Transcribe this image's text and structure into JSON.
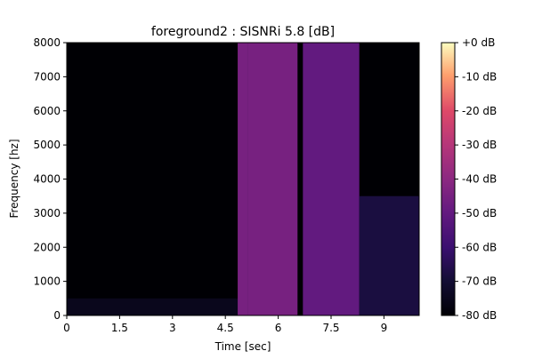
{
  "chart_data": {
    "type": "heatmap",
    "title": "foreground2 : SISNRi 5.8 [dB]",
    "xlabel": "Time [sec]",
    "ylabel": "Frequency [hz]",
    "xlim": [
      0,
      10
    ],
    "ylim": [
      0,
      8000
    ],
    "x_ticks": [
      0,
      1.5,
      3,
      4.5,
      6,
      7.5,
      9
    ],
    "x_tick_labels": [
      "0",
      "1.5",
      "3",
      "4.5",
      "6",
      "7.5",
      "9"
    ],
    "y_ticks": [
      0,
      1000,
      2000,
      3000,
      4000,
      5000,
      6000,
      7000,
      8000
    ],
    "y_tick_labels": [
      "0",
      "1000",
      "2000",
      "3000",
      "4000",
      "5000",
      "6000",
      "7000",
      "8000"
    ],
    "colorbar": {
      "range": [
        -80,
        0
      ],
      "colormap": "magma",
      "ticks": [
        0,
        -10,
        -20,
        -30,
        -40,
        -50,
        -60,
        -70,
        -80
      ],
      "tick_labels": [
        "+0 dB",
        "-10 dB",
        "-20 dB",
        "-30 dB",
        "-40 dB",
        "-50 dB",
        "-60 dB",
        "-70 dB",
        "-80 dB"
      ]
    },
    "regions": [
      {
        "t_start": 0.0,
        "t_end": 4.85,
        "f_max": 500,
        "level_db": -75
      },
      {
        "t_start": 4.85,
        "t_end": 5.15,
        "f_max": 8000,
        "level_db": -45
      },
      {
        "t_start": 5.15,
        "t_end": 6.55,
        "f_max": 8000,
        "level_db": -45
      },
      {
        "t_start": 6.55,
        "t_end": 6.7,
        "f_max": 8000,
        "level_db": -80
      },
      {
        "t_start": 6.7,
        "t_end": 8.3,
        "f_max": 8000,
        "level_db": -50
      },
      {
        "t_start": 8.3,
        "t_end": 10.0,
        "f_max": 3500,
        "level_db": -68
      }
    ]
  }
}
